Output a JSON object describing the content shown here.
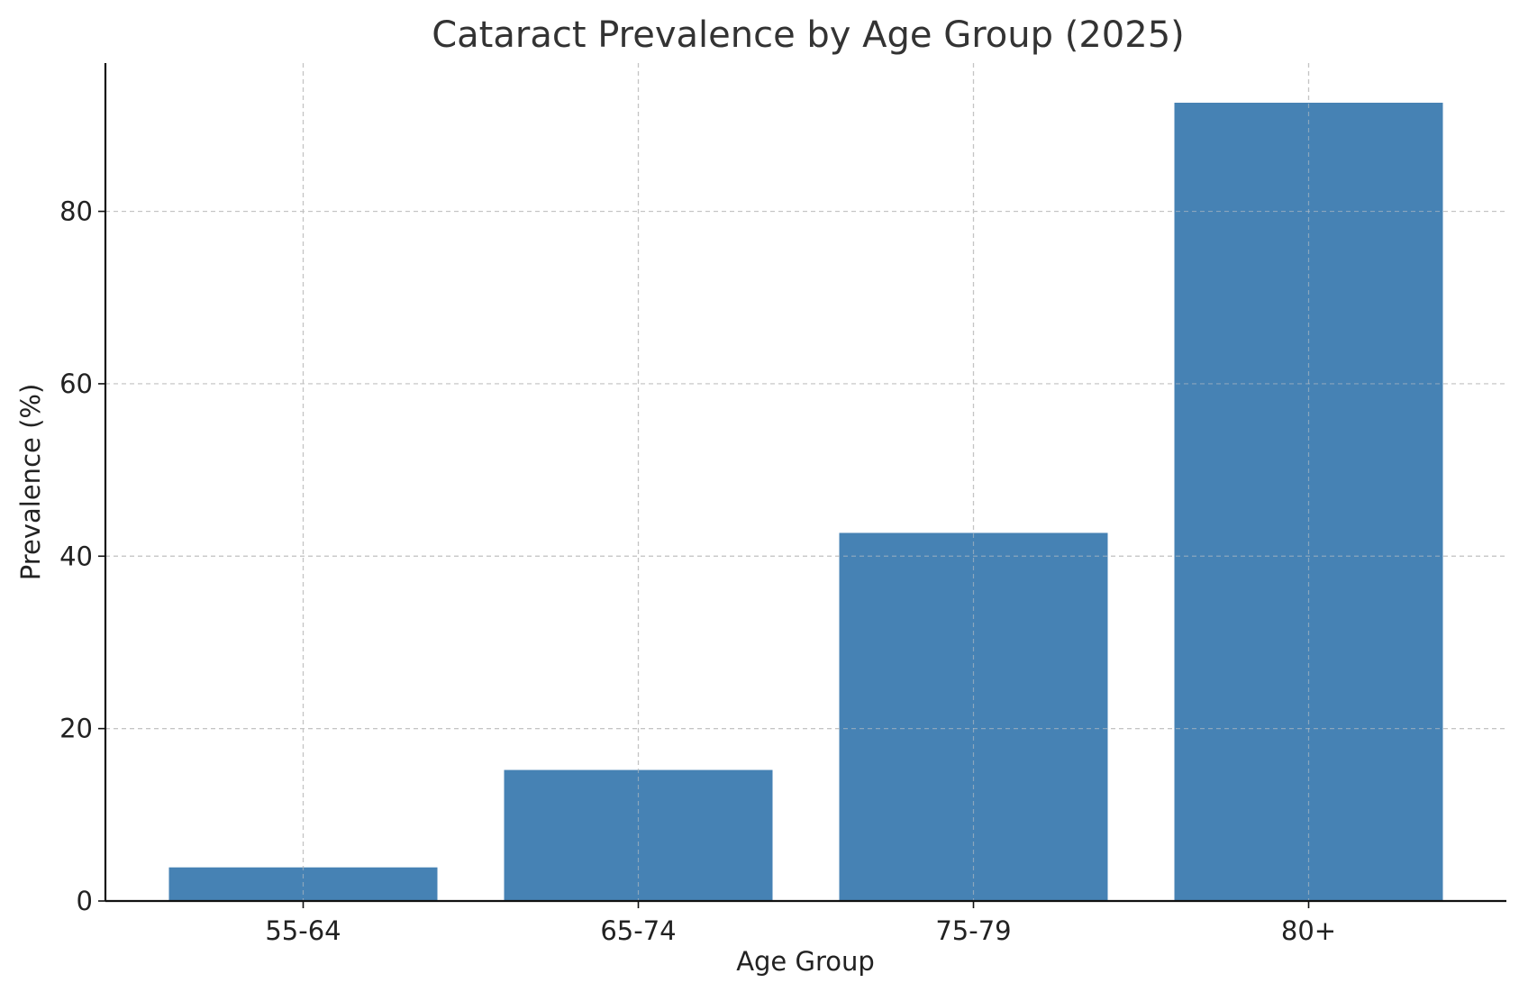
{
  "chart_data": {
    "type": "bar",
    "title": "Cataract Prevalence by Age Group (2025)",
    "xlabel": "Age Group",
    "ylabel": "Prevalence (%)",
    "categories": [
      "55-64",
      "65-74",
      "75-79",
      "80+"
    ],
    "values": [
      3.9,
      15.2,
      42.7,
      92.6
    ],
    "ylim": [
      0,
      97.2
    ],
    "yticks": [
      0,
      20,
      40,
      60,
      80
    ],
    "grid": true,
    "bar_color": "#4682b4"
  }
}
